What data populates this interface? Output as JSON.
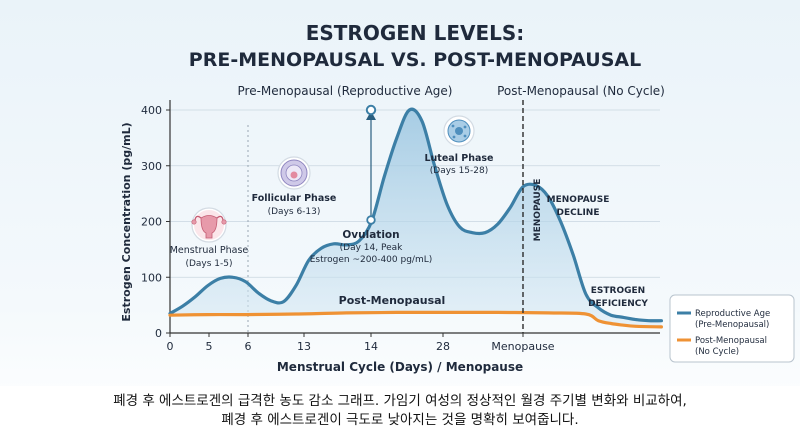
{
  "title_line1": "ESTROGEN LEVELS:",
  "title_line2": "PRE-MENOPAUSAL VS. POST-MENOPAUSAL",
  "caption_line1": "폐경 후 에스트로겐의 급격한 농도 감소 그래프. 가임기 여성의 정상적인 월경 주기별 변화와 비교하여,",
  "caption_line2": "폐경 후 에스트로겐이 극도로 낮아지는 것을 명확히 보여줍니다.",
  "colors": {
    "pre": "#3c7fa6",
    "post": "#ef9234",
    "title": "#1f2a3c"
  },
  "chart_data": {
    "type": "line",
    "xlabel": "Menstrual Cycle (Days) / Menopause",
    "ylabel": "Estrogen Concentration (pg/mL)",
    "ylim": [
      0,
      420
    ],
    "yticks": [
      0,
      100,
      200,
      300,
      400
    ],
    "x_tick_labels": [
      "0",
      "5",
      "6",
      "13",
      "14",
      "28",
      "Menopause"
    ],
    "section_labels": [
      "Pre-Menopausal (Reproductive Age)",
      "Post-Menopausal (No Cycle)"
    ],
    "series": [
      {
        "name": "Reproductive Age (Pre-Menopausal)",
        "legend_line1": "Reproductive Age",
        "legend_line2": "(Pre-Menopausal)",
        "x": [
          0,
          1,
          2,
          3,
          4,
          5,
          6,
          7,
          8,
          9,
          10,
          11,
          12,
          13,
          14,
          15,
          16,
          17,
          18,
          19,
          20,
          21,
          22,
          23,
          24,
          25,
          26,
          27,
          28,
          29,
          30,
          31,
          32,
          33,
          34,
          35,
          36,
          37,
          38,
          39
        ],
        "values": [
          35,
          48,
          65,
          85,
          98,
          100,
          92,
          72,
          58,
          56,
          85,
          130,
          152,
          160,
          158,
          165,
          200,
          280,
          350,
          400,
          380,
          300,
          230,
          190,
          180,
          180,
          195,
          225,
          262,
          265,
          245,
          200,
          140,
          70,
          45,
          32,
          28,
          24,
          22,
          22
        ]
      },
      {
        "name": "Post-Menopausal (No Cycle)",
        "legend_line1": "Post-Menopausal",
        "legend_line2": "(No Cycle)",
        "label": "Post-Menopausal",
        "x": [
          0,
          3,
          6,
          10,
          14,
          18,
          22,
          26,
          30,
          33,
          34,
          35,
          36,
          37,
          39
        ],
        "values": [
          32,
          33,
          33,
          34,
          36,
          37,
          37,
          37,
          36,
          34,
          22,
          17,
          14,
          12,
          11
        ]
      }
    ],
    "annotations": [
      {
        "id": "menstrual",
        "line1": "Menstrual Phase",
        "line2": "(Days 1-5)"
      },
      {
        "id": "follicular",
        "line1": "Follicular Phase",
        "line2": "(Days 6-13)"
      },
      {
        "id": "ovulation",
        "line1": "Ovulation",
        "line2": "(Day 14, Peak",
        "line3": "Estrogen ~200-400 pg/mL)"
      },
      {
        "id": "luteal",
        "line1": "Luteal Phase",
        "line2": "(Days 15-28)"
      },
      {
        "id": "menopause_line",
        "text": "MENOPAUSE"
      },
      {
        "id": "decline",
        "line1": "MENOPAUSE",
        "line2": "DECLINE"
      },
      {
        "id": "deficiency",
        "line1": "ESTROGEN",
        "line2": "DEFICIENCY"
      }
    ]
  }
}
